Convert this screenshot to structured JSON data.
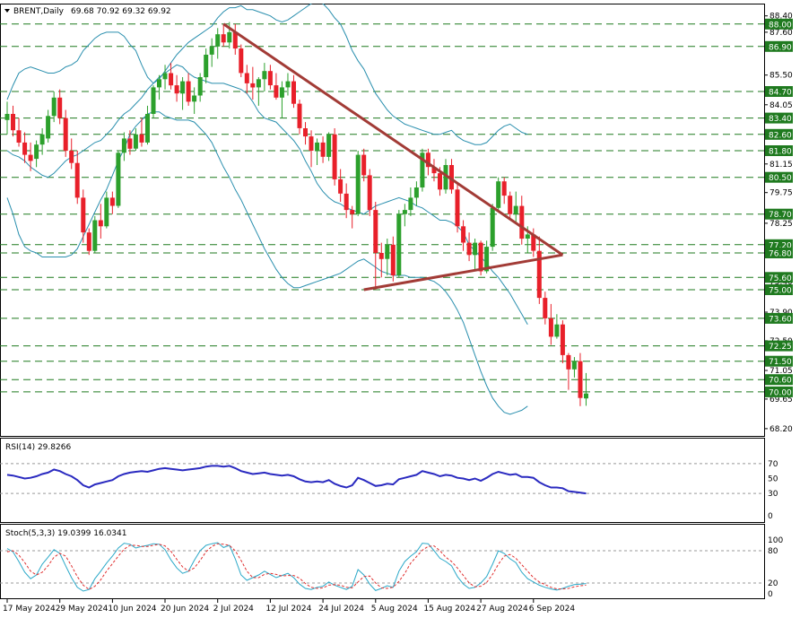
{
  "header": {
    "symbol": "BRENT,Daily",
    "ohlc": "69.68 70.92 69.32 69.92"
  },
  "rsi_panel": {
    "label": "RSI(14) 29.8266"
  },
  "stoch_panel": {
    "label": "Stoch(5,3,3) 19.0399 16.0341"
  },
  "colors": {
    "bull": "#2ca02c",
    "bear": "#e8202a",
    "bollinger": "#2a8fae",
    "trendline": "#a23b36",
    "dashed_level": "#1f7a1f",
    "level_box": "#1f7a1f",
    "rsi_line": "#2a2ac0",
    "stoch_main": "#2aa8c8",
    "stoch_signal": "#e03030"
  },
  "chart_data": [
    {
      "type": "candlestick",
      "title": "BRENT,Daily",
      "ylim": [
        67.8,
        89.0
      ],
      "y_ticks": [
        88.4,
        87.6,
        85.5,
        84.05,
        82.6,
        81.15,
        79.75,
        78.25,
        76.85,
        75.4,
        73.9,
        72.5,
        71.05,
        69.65,
        68.2
      ],
      "x_tick_labels": [
        "17 May 2024",
        "29 May 2024",
        "10 Jun 2024",
        "20 Jun 2024",
        "2 Jul 2024",
        "12 Jul 2024",
        "24 Jul 2024",
        "5 Aug 2024",
        "15 Aug 2024",
        "27 Aug 2024",
        "6 Sep 2024"
      ],
      "horizontal_levels": [
        88.0,
        86.9,
        84.7,
        83.4,
        82.6,
        81.8,
        80.5,
        78.7,
        77.2,
        76.8,
        75.6,
        75.0,
        73.6,
        72.25,
        71.5,
        70.6,
        70.0
      ],
      "ohlc": [
        [
          83.3,
          84.2,
          82.6,
          83.6
        ],
        [
          83.6,
          84.0,
          82.5,
          82.8
        ],
        [
          82.8,
          83.4,
          82.0,
          82.2
        ],
        [
          82.2,
          82.7,
          81.2,
          81.6
        ],
        [
          81.6,
          82.2,
          80.8,
          81.3
        ],
        [
          81.4,
          82.3,
          81.0,
          82.1
        ],
        [
          82.1,
          82.9,
          81.6,
          82.6
        ],
        [
          82.4,
          83.8,
          82.2,
          83.5
        ],
        [
          83.5,
          84.7,
          83.2,
          84.4
        ],
        [
          84.4,
          84.8,
          83.1,
          83.4
        ],
        [
          83.4,
          83.8,
          81.5,
          81.8
        ],
        [
          81.8,
          82.4,
          80.9,
          81.2
        ],
        [
          81.2,
          81.8,
          79.2,
          79.5
        ],
        [
          79.5,
          79.9,
          77.3,
          77.8
        ],
        [
          77.8,
          78.0,
          76.7,
          76.9
        ],
        [
          76.9,
          78.6,
          76.8,
          78.4
        ],
        [
          78.4,
          79.2,
          77.5,
          78.1
        ],
        [
          78.1,
          79.8,
          78.0,
          79.5
        ],
        [
          79.5,
          79.8,
          78.7,
          79.1
        ],
        [
          79.1,
          81.8,
          79.0,
          81.7
        ],
        [
          81.7,
          82.7,
          81.3,
          82.4
        ],
        [
          82.4,
          82.8,
          81.6,
          81.9
        ],
        [
          81.9,
          82.9,
          81.8,
          82.6
        ],
        [
          82.6,
          83.4,
          82.0,
          82.2
        ],
        [
          82.2,
          84.0,
          82.1,
          83.6
        ],
        [
          83.6,
          85.0,
          83.4,
          84.9
        ],
        [
          84.9,
          85.5,
          84.3,
          85.3
        ],
        [
          85.3,
          86.0,
          84.8,
          85.6
        ],
        [
          85.6,
          86.1,
          84.8,
          85.0
        ],
        [
          85.0,
          85.5,
          84.2,
          84.6
        ],
        [
          84.6,
          85.4,
          83.8,
          85.2
        ],
        [
          85.2,
          85.6,
          84.0,
          84.2
        ],
        [
          84.2,
          84.9,
          83.6,
          84.5
        ],
        [
          84.5,
          85.6,
          84.2,
          85.4
        ],
        [
          85.4,
          86.8,
          85.1,
          86.5
        ],
        [
          86.5,
          87.3,
          85.9,
          86.9
        ],
        [
          86.9,
          87.8,
          86.3,
          87.5
        ],
        [
          87.5,
          88.0,
          86.9,
          87.1
        ],
        [
          87.1,
          88.1,
          86.8,
          87.6
        ],
        [
          87.6,
          88.0,
          86.5,
          86.8
        ],
        [
          86.8,
          87.0,
          85.4,
          85.6
        ],
        [
          85.6,
          86.0,
          84.6,
          85.1
        ],
        [
          85.1,
          85.9,
          84.3,
          84.9
        ],
        [
          84.9,
          85.4,
          84.0,
          85.3
        ],
        [
          85.3,
          86.1,
          84.7,
          85.7
        ],
        [
          85.7,
          86.0,
          84.8,
          85.0
        ],
        [
          85.0,
          85.6,
          84.3,
          84.4
        ],
        [
          84.4,
          85.2,
          83.4,
          84.9
        ],
        [
          84.9,
          85.6,
          84.5,
          85.2
        ],
        [
          85.2,
          85.5,
          83.9,
          84.1
        ],
        [
          84.1,
          84.3,
          82.6,
          82.9
        ],
        [
          82.9,
          83.2,
          82.1,
          82.5
        ],
        [
          82.5,
          82.8,
          81.0,
          81.8
        ],
        [
          81.8,
          82.4,
          81.1,
          82.2
        ],
        [
          82.2,
          82.5,
          81.2,
          81.5
        ],
        [
          81.5,
          82.7,
          81.3,
          82.6
        ],
        [
          82.6,
          82.9,
          80.1,
          80.4
        ],
        [
          80.4,
          80.9,
          79.3,
          79.7
        ],
        [
          79.7,
          80.2,
          78.5,
          78.9
        ],
        [
          78.9,
          79.1,
          78.0,
          78.7
        ],
        [
          78.7,
          81.8,
          78.6,
          81.6
        ],
        [
          81.6,
          81.9,
          80.3,
          80.6
        ],
        [
          80.6,
          80.9,
          78.6,
          78.9
        ],
        [
          78.9,
          79.3,
          75.0,
          76.8
        ],
        [
          76.8,
          77.3,
          75.6,
          76.5
        ],
        [
          76.5,
          77.5,
          75.7,
          77.2
        ],
        [
          77.2,
          77.6,
          75.4,
          75.7
        ],
        [
          75.7,
          78.9,
          75.6,
          78.7
        ],
        [
          78.7,
          79.2,
          78.1,
          78.9
        ],
        [
          78.9,
          80.0,
          78.6,
          79.5
        ],
        [
          79.5,
          80.3,
          79.1,
          80.0
        ],
        [
          80.0,
          81.9,
          79.8,
          81.7
        ],
        [
          81.7,
          81.9,
          80.6,
          81.0
        ],
        [
          81.0,
          81.4,
          80.3,
          80.7
        ],
        [
          80.7,
          81.0,
          79.6,
          79.9
        ],
        [
          79.9,
          81.4,
          79.7,
          81.1
        ],
        [
          81.1,
          81.4,
          79.7,
          79.9
        ],
        [
          79.9,
          80.2,
          77.8,
          78.1
        ],
        [
          78.1,
          78.4,
          76.9,
          77.3
        ],
        [
          77.3,
          77.8,
          76.4,
          76.7
        ],
        [
          76.7,
          77.5,
          76.0,
          77.3
        ],
        [
          77.3,
          77.4,
          75.7,
          75.9
        ],
        [
          75.9,
          77.4,
          75.8,
          77.1
        ],
        [
          77.1,
          79.2,
          76.9,
          79.0
        ],
        [
          79.0,
          80.5,
          78.8,
          80.3
        ],
        [
          80.3,
          80.5,
          79.2,
          79.6
        ],
        [
          79.6,
          79.8,
          78.5,
          78.7
        ],
        [
          78.7,
          79.8,
          78.3,
          79.1
        ],
        [
          79.1,
          79.6,
          77.2,
          77.5
        ],
        [
          77.5,
          78.1,
          76.8,
          77.7
        ],
        [
          77.7,
          78.0,
          76.6,
          76.9
        ],
        [
          76.9,
          77.6,
          74.3,
          74.6
        ],
        [
          74.6,
          74.9,
          73.3,
          73.6
        ],
        [
          73.6,
          74.3,
          72.3,
          72.7
        ],
        [
          72.7,
          73.8,
          72.6,
          73.3
        ],
        [
          73.3,
          73.5,
          71.4,
          71.8
        ],
        [
          71.8,
          71.9,
          70.1,
          71.1
        ],
        [
          71.1,
          71.7,
          70.7,
          71.5
        ],
        [
          71.5,
          71.9,
          69.3,
          69.7
        ],
        [
          69.68,
          70.92,
          69.32,
          69.92
        ]
      ],
      "bollinger_upper": [
        84.3,
        85.0,
        85.6,
        85.8,
        85.9,
        85.8,
        85.7,
        85.6,
        85.6,
        85.7,
        85.9,
        86.0,
        86.2,
        86.7,
        87.0,
        87.3,
        87.5,
        87.6,
        87.6,
        87.6,
        87.4,
        87.0,
        86.7,
        86.0,
        85.4,
        85.1,
        85.3,
        85.7,
        86.1,
        86.5,
        86.8,
        87.1,
        87.3,
        87.5,
        87.7,
        87.9,
        88.3,
        88.6,
        88.8,
        88.8,
        88.9,
        88.7,
        88.7,
        88.6,
        88.5,
        88.4,
        88.2,
        88.1,
        88.2,
        88.4,
        88.6,
        88.8,
        89.0,
        89.1,
        89.0,
        88.7,
        88.3,
        88.0,
        87.4,
        86.7,
        86.2,
        85.8,
        85.2,
        84.6,
        84.2,
        83.8,
        83.5,
        83.3,
        83.1,
        83.0,
        82.9,
        82.8,
        82.7,
        82.6,
        82.6,
        82.7,
        82.8,
        82.5,
        82.3,
        82.2,
        82.1,
        82.1,
        82.2,
        82.5,
        82.8,
        83.0,
        83.1,
        82.9,
        82.7,
        82.6
      ],
      "bollinger_middle": [
        81.8,
        81.6,
        81.5,
        81.3,
        81.0,
        80.8,
        80.6,
        80.5,
        80.7,
        81.0,
        81.3,
        81.5,
        81.6,
        81.8,
        82.0,
        82.2,
        82.3,
        82.6,
        82.9,
        83.3,
        83.6,
        83.8,
        84.1,
        84.4,
        84.8,
        85.1,
        85.4,
        85.6,
        85.8,
        86.0,
        85.9,
        85.6,
        85.4,
        85.3,
        85.2,
        85.1,
        85.1,
        85.1,
        85.0,
        84.9,
        84.8,
        84.6,
        84.2,
        83.7,
        83.4,
        83.3,
        83.2,
        82.9,
        82.6,
        82.3,
        81.9,
        81.3,
        80.8,
        80.2,
        79.8,
        79.5,
        79.3,
        79.2,
        79.0,
        78.9,
        78.8,
        78.7,
        78.9,
        79.1,
        79.2,
        79.3,
        79.4,
        79.5,
        79.4,
        79.3,
        79.1,
        79.0,
        78.8,
        78.6,
        78.4,
        78.4,
        78.3,
        78.1,
        77.8,
        77.2,
        76.9,
        76.6,
        76.3,
        75.9,
        75.6,
        75.2,
        74.8,
        74.3,
        73.8,
        73.3
      ],
      "bollinger_lower": [
        79.5,
        78.7,
        77.7,
        77.1,
        76.9,
        76.8,
        76.6,
        76.6,
        76.6,
        76.6,
        76.6,
        76.7,
        77.0,
        77.6,
        78.2,
        78.8,
        79.4,
        79.9,
        80.6,
        81.3,
        81.9,
        82.6,
        83.0,
        83.3,
        83.6,
        83.7,
        83.7,
        83.5,
        83.4,
        83.3,
        83.3,
        83.3,
        83.2,
        82.9,
        82.6,
        82.2,
        81.6,
        81.0,
        80.5,
        79.9,
        79.4,
        78.8,
        78.2,
        77.6,
        77.0,
        76.5,
        76.0,
        75.6,
        75.3,
        75.1,
        75.1,
        75.2,
        75.3,
        75.4,
        75.5,
        75.6,
        75.7,
        75.8,
        76.0,
        76.2,
        76.4,
        76.5,
        76.3,
        76.1,
        75.9,
        75.8,
        75.7,
        75.7,
        75.7,
        75.6,
        75.6,
        75.6,
        75.5,
        75.4,
        75.2,
        74.9,
        74.5,
        74.0,
        73.4,
        72.6,
        71.8,
        71.0,
        70.3,
        69.7,
        69.3,
        69.0,
        68.9,
        69.0,
        69.1,
        69.3
      ],
      "trendlines": [
        {
          "from": [
            37,
            88.0
          ],
          "to": [
            95,
            76.7
          ]
        },
        {
          "from": [
            61,
            75.0
          ],
          "to": [
            95,
            76.7
          ]
        }
      ]
    },
    {
      "type": "line",
      "title": "RSI(14) 29.8266",
      "ylim": [
        0,
        100
      ],
      "y_ticks": [
        70,
        50,
        30,
        0
      ],
      "levels": [
        70,
        30
      ],
      "values": [
        55,
        54,
        52,
        50,
        51,
        53,
        56,
        58,
        62,
        60,
        56,
        53,
        48,
        41,
        38,
        42,
        44,
        46,
        48,
        53,
        56,
        58,
        59,
        60,
        59,
        61,
        63,
        64,
        63,
        62,
        61,
        62,
        63,
        64,
        66,
        67,
        67,
        66,
        67,
        64,
        60,
        58,
        56,
        57,
        58,
        56,
        55,
        54,
        55,
        53,
        49,
        46,
        45,
        46,
        45,
        48,
        43,
        40,
        38,
        41,
        51,
        48,
        44,
        40,
        41,
        43,
        42,
        49,
        51,
        53,
        55,
        60,
        58,
        56,
        53,
        55,
        54,
        51,
        50,
        48,
        50,
        47,
        51,
        56,
        59,
        57,
        55,
        56,
        52,
        52,
        51,
        45,
        41,
        38,
        38,
        37,
        33,
        32,
        31,
        30
      ]
    },
    {
      "type": "line",
      "title": "Stoch(5,3,3) 19.0399 16.0341",
      "ylim": [
        0,
        100
      ],
      "y_ticks": [
        100,
        80,
        20,
        0
      ],
      "levels": [
        80,
        20
      ],
      "series": [
        {
          "values": [
            84,
            78,
            60,
            40,
            28,
            35,
            55,
            68,
            82,
            75,
            52,
            30,
            12,
            5,
            8,
            28,
            42,
            57,
            70,
            85,
            94,
            92,
            85,
            88,
            90,
            93,
            92,
            82,
            63,
            48,
            38,
            42,
            62,
            80,
            90,
            93,
            95,
            86,
            90,
            65,
            35,
            25,
            30,
            35,
            42,
            36,
            30,
            34,
            38,
            30,
            18,
            10,
            8,
            12,
            14,
            22,
            16,
            12,
            8,
            14,
            45,
            35,
            18,
            6,
            10,
            15,
            12,
            42,
            60,
            70,
            78,
            94,
            93,
            80,
            66,
            60,
            52,
            32,
            18,
            10,
            12,
            20,
            32,
            55,
            80,
            75,
            65,
            58,
            40,
            28,
            22,
            16,
            12,
            9,
            7,
            10,
            14,
            17,
            18,
            19
          ]
        },
        {
          "values": [
            78,
            80,
            72,
            58,
            42,
            35,
            40,
            52,
            68,
            75,
            70,
            52,
            32,
            16,
            8,
            14,
            26,
            42,
            56,
            70,
            83,
            90,
            90,
            88,
            88,
            90,
            92,
            89,
            79,
            64,
            50,
            42,
            48,
            62,
            78,
            88,
            93,
            92,
            90,
            80,
            62,
            42,
            30,
            30,
            36,
            38,
            36,
            33,
            34,
            34,
            29,
            19,
            12,
            10,
            11,
            16,
            17,
            16,
            12,
            11,
            22,
            32,
            33,
            20,
            11,
            10,
            12,
            23,
            38,
            57,
            69,
            81,
            88,
            89,
            80,
            68,
            60,
            48,
            34,
            20,
            13,
            14,
            21,
            36,
            55,
            70,
            73,
            66,
            54,
            42,
            30,
            22,
            17,
            12,
            9,
            9,
            10,
            13,
            15,
            16
          ]
        }
      ]
    }
  ]
}
